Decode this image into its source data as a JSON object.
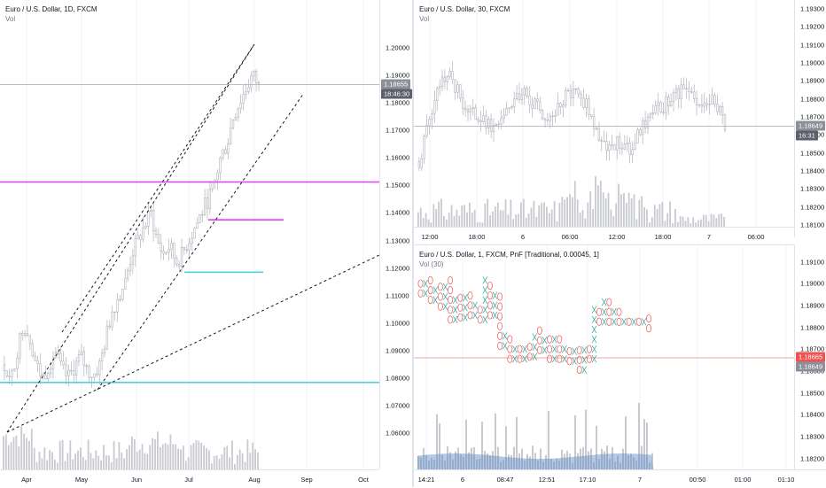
{
  "colors": {
    "grid": "#e0e3eb",
    "candle": "#b2b5be",
    "volume": "#c8cad0",
    "magenta": "#e040fb",
    "cyan": "#4dd0e1",
    "pnf_x": "#26a69a",
    "pnf_o": "#ef5350",
    "vol_ma": "#5b84c4",
    "badge_gray": "#8c8f98",
    "badge_dark": "#5d606b",
    "badge_red": "#ef5350"
  },
  "panes": {
    "daily": {
      "title": "Euro / U.S. Dollar, 1D, FXCM",
      "indicator": "Vol",
      "price_labels": [
        "1.20000",
        "1.19000",
        "1.18000",
        "1.17000",
        "1.16000",
        "1.15000",
        "1.14000",
        "1.13000",
        "1.12000",
        "1.11000",
        "1.10000",
        "1.09000",
        "1.08000",
        "1.07000",
        "1.06000"
      ],
      "price_badge": "1.18655",
      "countdown_badge": "18:46:30",
      "time_labels": [
        "Apr",
        "May",
        "Jun",
        "Jul",
        "Aug",
        "Sep",
        "Oct"
      ],
      "chart_data": {
        "type": "candlestick",
        "x": [
          "Apr",
          "May",
          "Jun",
          "Jul",
          "Aug"
        ],
        "ylim": [
          1.055,
          1.205
        ],
        "last_price": 1.18655,
        "horizontal_levels": [
          1.1512,
          1.1375,
          1.1185,
          1.0785
        ],
        "close_path": [
          1.085,
          1.078,
          1.09,
          1.1,
          1.095,
          1.085,
          1.08,
          1.085,
          1.09,
          1.083,
          1.08,
          1.084,
          1.088,
          1.083,
          1.081,
          1.085,
          1.095,
          1.105,
          1.11,
          1.115,
          1.125,
          1.13,
          1.135,
          1.14,
          1.13,
          1.125,
          1.128,
          1.122,
          1.125,
          1.13,
          1.135,
          1.14,
          1.145,
          1.15,
          1.16,
          1.165,
          1.175,
          1.18,
          1.185,
          1.19,
          1.186
        ]
      }
    },
    "m30": {
      "title": "Euro / U.S. Dollar, 30, FXCM",
      "indicator": "Vol",
      "price_labels": [
        "1.19200",
        "1.19000",
        "1.18800",
        "1.18600",
        "1.18400",
        "1.18200"
      ],
      "price_badge": "1.18649",
      "countdown_badge": "16:31",
      "low_label": "1.18100",
      "time_labels": [
        "12:00",
        "18:00",
        "6",
        "06:00",
        "12:00",
        "18:00",
        "7",
        "06:00"
      ],
      "chart_data": {
        "type": "candlestick",
        "ylim": [
          1.181,
          1.1935
        ],
        "last_price": 1.18649
      }
    },
    "pnf": {
      "title": "Euro / U.S. Dollar, 1, FXCM, PnF [Traditional, 0.00045, 1]",
      "indicator": "Vol (30)",
      "price_labels": [
        "1.19100",
        "1.19000",
        "1.18900",
        "1.18800",
        "1.18700",
        "1.18600",
        "1.18500",
        "1.18400",
        "1.18300",
        "1.18200"
      ],
      "price_badge_1": "1.18665",
      "price_badge_2": "1.18649",
      "time_labels": [
        "14:21",
        "6",
        "08:47",
        "12:51",
        "17:10",
        "7",
        "00:50",
        "01:00",
        "01:10"
      ],
      "chart_data": {
        "type": "pnf",
        "ylim": [
          1.1815,
          1.1918
        ],
        "box_size": 0.00045,
        "reversal": 1,
        "last_price": 1.18665
      }
    }
  }
}
